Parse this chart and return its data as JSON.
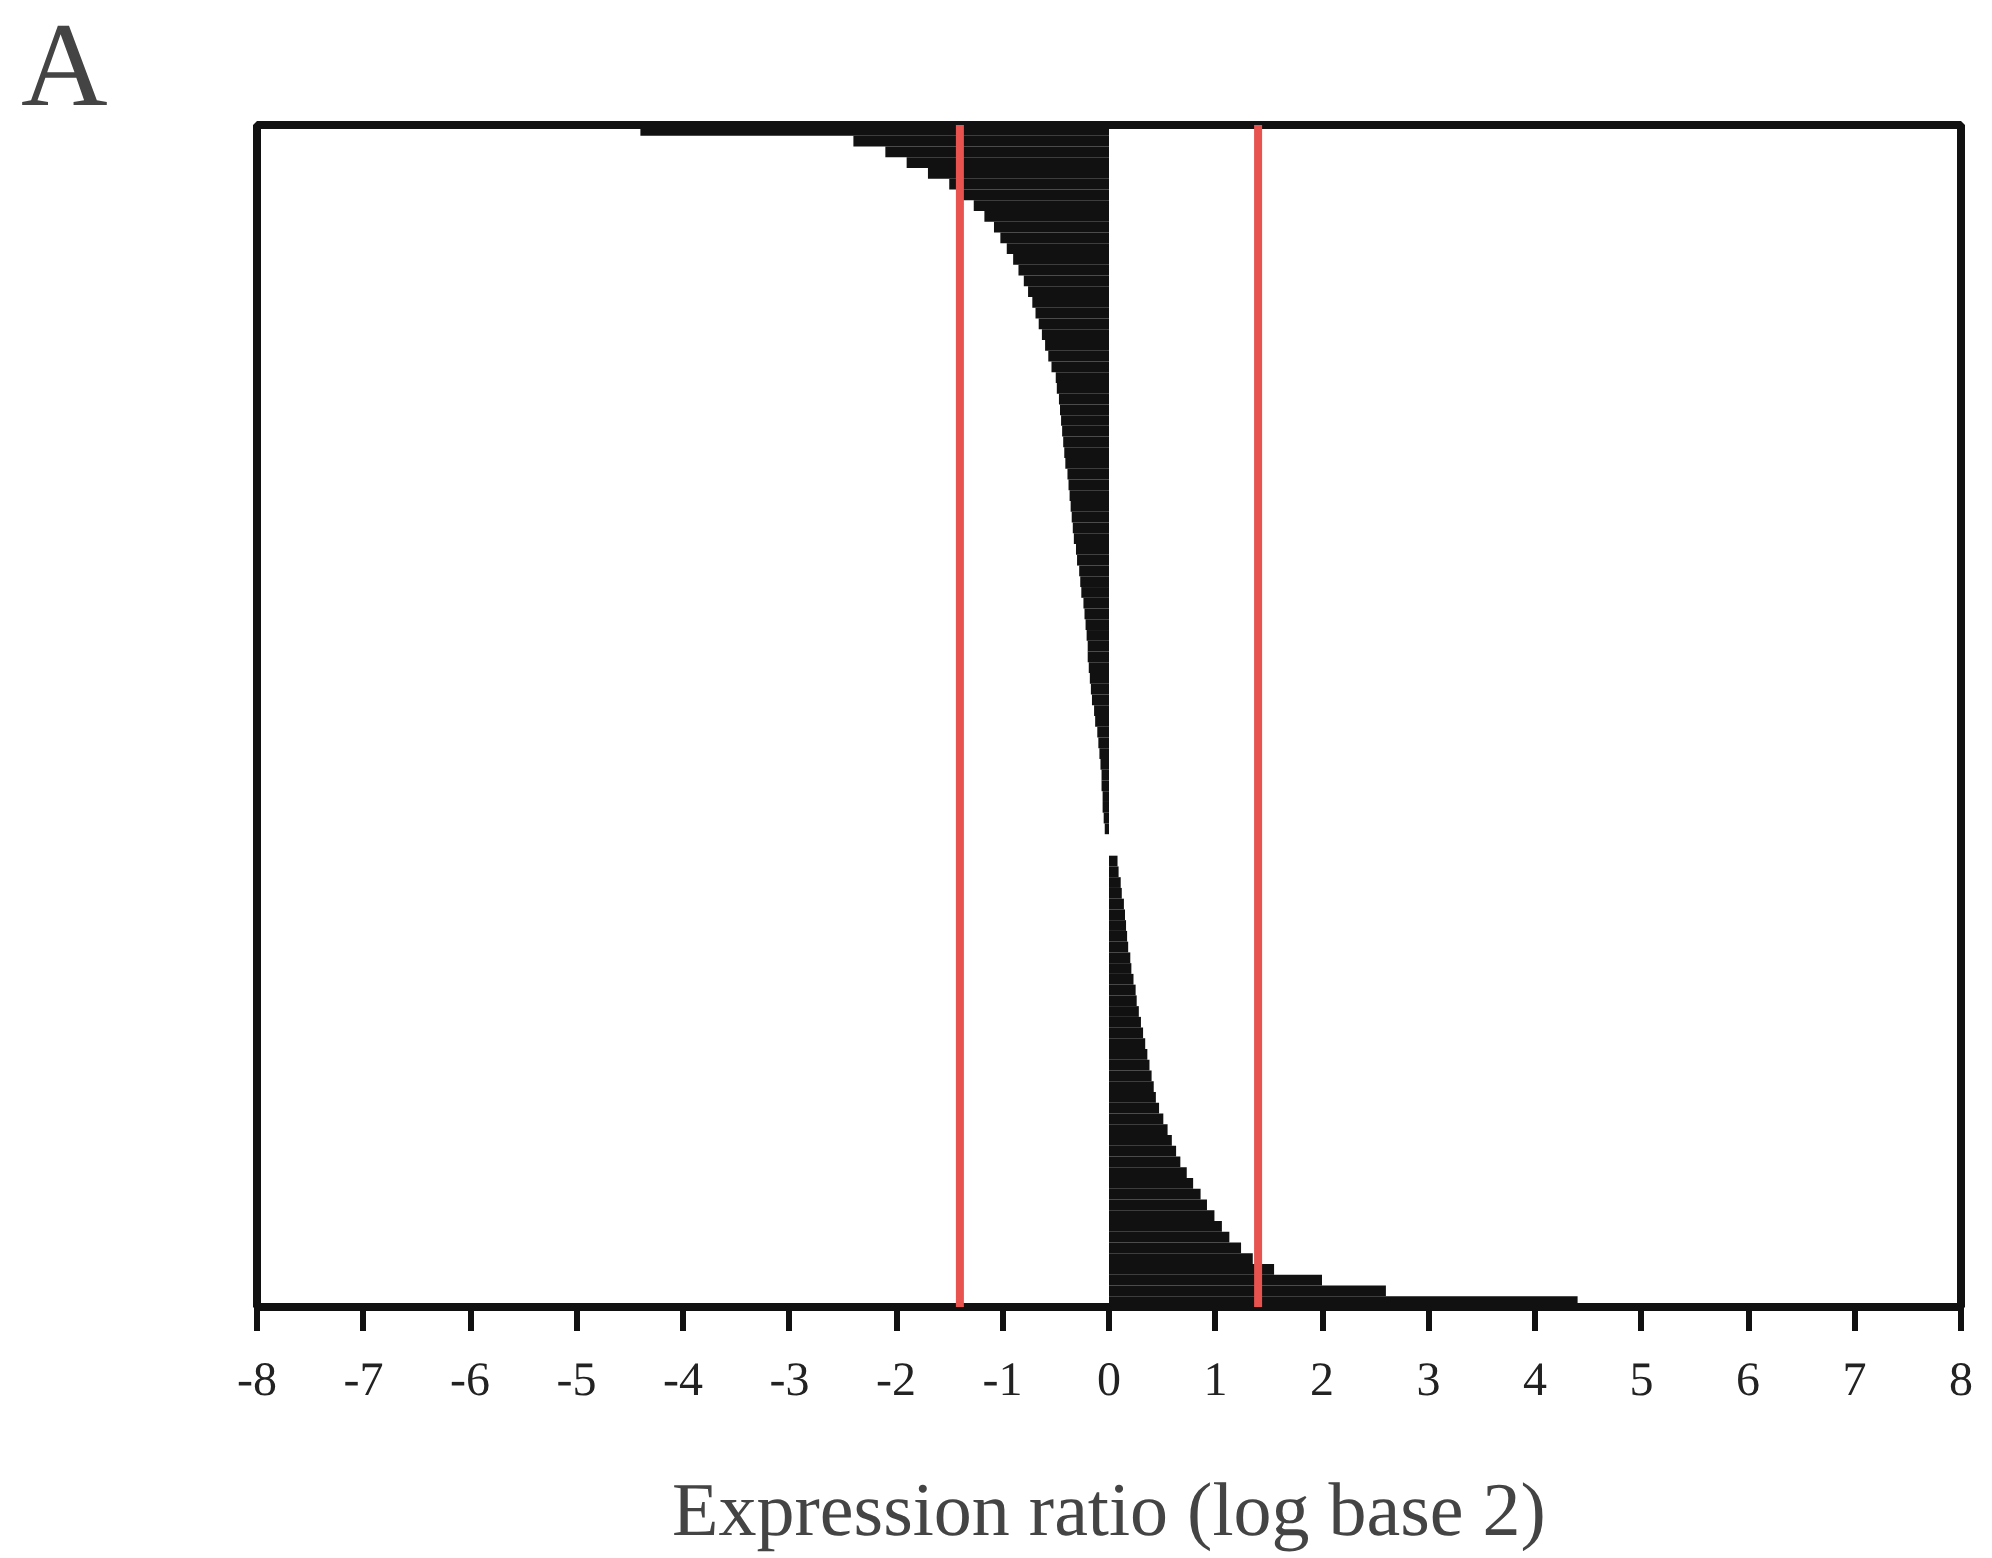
{
  "chart_data": {
    "type": "bar",
    "orientation": "horizontal",
    "title": "A",
    "xlabel": "Expression ratio (log base 2)",
    "categories": [
      null,
      null,
      null,
      null,
      null,
      null,
      null,
      null,
      null,
      null,
      null,
      null,
      null,
      null,
      null,
      null,
      null,
      null,
      null,
      null,
      null,
      null,
      null,
      null,
      null,
      null,
      null,
      null,
      null,
      null,
      null,
      null,
      null,
      null,
      null,
      null,
      null,
      null,
      null,
      null,
      null,
      null,
      null,
      null,
      null,
      null,
      null,
      null,
      null,
      null,
      null,
      null,
      null,
      null,
      null,
      null,
      null,
      null,
      null,
      null,
      null,
      null,
      null,
      null,
      null,
      null,
      null,
      null,
      null,
      null,
      null,
      null,
      null,
      null,
      null,
      null,
      null,
      null,
      null,
      null,
      null,
      null,
      null,
      null,
      null,
      null,
      null,
      null,
      null,
      null,
      null,
      null,
      null,
      null,
      null,
      null,
      null,
      null,
      null,
      null,
      null,
      null,
      null,
      null,
      null,
      null,
      null,
      null,
      null,
      null
    ],
    "values": [
      -4.4,
      -2.4,
      -2.1,
      -1.9,
      -1.7,
      -1.5,
      -1.38,
      -1.27,
      -1.17,
      -1.08,
      -1.02,
      -0.96,
      -0.9,
      -0.85,
      -0.8,
      -0.76,
      -0.72,
      -0.69,
      -0.66,
      -0.63,
      -0.6,
      -0.57,
      -0.54,
      -0.5,
      -0.49,
      -0.47,
      -0.46,
      -0.45,
      -0.44,
      -0.43,
      -0.42,
      -0.41,
      -0.39,
      -0.38,
      -0.37,
      -0.36,
      -0.35,
      -0.34,
      -0.33,
      -0.31,
      -0.3,
      -0.28,
      -0.27,
      -0.26,
      -0.24,
      -0.23,
      -0.22,
      -0.21,
      -0.2,
      -0.2,
      -0.19,
      -0.18,
      -0.17,
      -0.16,
      -0.14,
      -0.13,
      -0.11,
      -0.1,
      -0.09,
      -0.08,
      -0.07,
      -0.07,
      -0.06,
      -0.06,
      -0.05,
      -0.04,
      0,
      0,
      0.08,
      0.09,
      0.11,
      0.12,
      0.14,
      0.15,
      0.16,
      0.17,
      0.18,
      0.2,
      0.21,
      0.23,
      0.25,
      0.26,
      0.28,
      0.3,
      0.32,
      0.34,
      0.36,
      0.38,
      0.4,
      0.42,
      0.44,
      0.47,
      0.51,
      0.55,
      0.59,
      0.63,
      0.67,
      0.73,
      0.79,
      0.86,
      0.92,
      0.99,
      1.06,
      1.13,
      1.24,
      1.35,
      1.55,
      2.0,
      2.6,
      4.4
    ],
    "color": "#111111",
    "xlim": [
      -8,
      8
    ],
    "xticks": [
      -8,
      -7,
      -6,
      -5,
      -4,
      -3,
      -2,
      -1,
      0,
      1,
      2,
      3,
      4,
      5,
      6,
      7,
      8
    ],
    "tick_labels": "x",
    "grid": false,
    "ref_lines": [
      {
        "axis": "x",
        "value": -1.4,
        "color": "#e8524f"
      },
      {
        "axis": "x",
        "value": 1.4,
        "color": "#e8524f"
      }
    ]
  }
}
